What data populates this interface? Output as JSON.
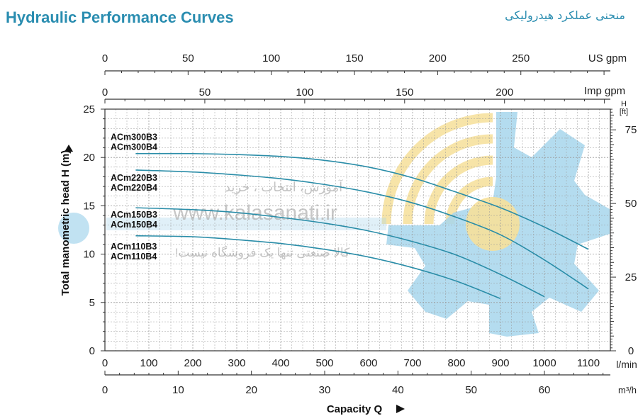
{
  "titles": {
    "english": "Hydraulic Performance Curves",
    "persian": "منحنی عملکرد هیدرولیکی"
  },
  "watermark": {
    "line1": "آموزش، انتخاب ، خرید",
    "url": "www.kalasanati.ir",
    "line3": "کالا صنعتی تنها یک فروشگاه نیست!"
  },
  "chart_data": {
    "type": "line",
    "title": "Hydraulic Performance Curves",
    "xlabel": "Capacity Q",
    "ylabel": "Total manometric head H (m)",
    "xlim": [
      0,
      1150
    ],
    "ylim": [
      0,
      25
    ],
    "grid": true,
    "axes": {
      "x_main": {
        "unit": "l/min",
        "ticks": [
          0,
          100,
          200,
          300,
          400,
          500,
          600,
          700,
          800,
          900,
          1000,
          1100
        ]
      },
      "x_m3h": {
        "unit": "m³/h",
        "ticks": [
          0,
          10,
          20,
          30,
          40,
          50,
          60
        ]
      },
      "x_impgpm": {
        "unit": "Imp gpm",
        "ticks": [
          0,
          50,
          100,
          150,
          200
        ]
      },
      "x_usgpm": {
        "unit": "US gpm",
        "ticks": [
          0,
          50,
          100,
          150,
          200,
          250
        ]
      },
      "y_main": {
        "unit": "",
        "ticks": [
          0,
          5,
          10,
          15,
          20,
          25
        ]
      },
      "y_ft": {
        "unit_line1": "H",
        "unit_line2": "[ft]",
        "ticks": [
          0,
          25,
          50,
          75
        ]
      }
    },
    "series": [
      {
        "name": "ACm110B3 / ACm110B4",
        "x": [
          70,
          200,
          300,
          400,
          500,
          600,
          700,
          800,
          900
        ],
        "y": [
          11.9,
          11.8,
          11.5,
          11.1,
          10.5,
          9.7,
          8.6,
          7.2,
          5.4
        ]
      },
      {
        "name": "ACm150B3 / ACm150B4",
        "x": [
          70,
          200,
          300,
          400,
          500,
          600,
          700,
          800,
          900,
          1000
        ],
        "y": [
          14.8,
          14.6,
          14.3,
          13.8,
          13.2,
          12.4,
          11.3,
          9.9,
          7.9,
          5.6
        ]
      },
      {
        "name": "ACm220B3 / ACm220B4",
        "x": [
          70,
          200,
          300,
          400,
          500,
          600,
          700,
          800,
          900,
          1000,
          1100
        ],
        "y": [
          18.7,
          18.5,
          18.2,
          17.8,
          17.2,
          16.4,
          15.3,
          13.8,
          12.0,
          9.4,
          6.4
        ]
      },
      {
        "name": "ACm300B3 / ACm300B4",
        "x": [
          70,
          200,
          300,
          400,
          500,
          600,
          700,
          800,
          900,
          1000,
          1100
        ],
        "y": [
          20.4,
          20.4,
          20.3,
          20.1,
          19.7,
          19.0,
          17.9,
          16.4,
          14.8,
          12.8,
          10.5
        ]
      }
    ],
    "curve_labels": [
      {
        "lines": [
          "ACm300B3",
          "ACm300B4"
        ],
        "h": 21.8
      },
      {
        "lines": [
          "ACm220B3",
          "ACm220B4"
        ],
        "h": 17.6
      },
      {
        "lines": [
          "ACm150B3",
          "ACm150B4"
        ],
        "h": 13.8
      },
      {
        "lines": [
          "ACm110B3",
          "ACm110B4"
        ],
        "h": 10.5
      }
    ],
    "colors": {
      "curve": "#2a8da8",
      "grid": "#999999",
      "axis": "#333333",
      "watermark_gear": "#a9d8ee",
      "watermark_arcs": "#f7e3a0"
    }
  }
}
